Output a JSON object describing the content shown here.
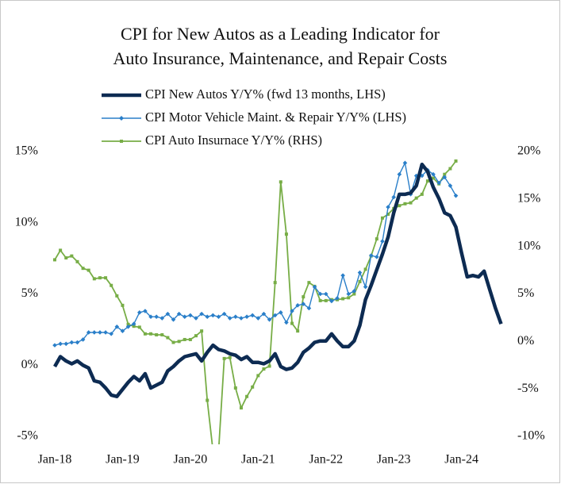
{
  "chart_data": {
    "type": "line",
    "title": [
      "CPI for New Autos as a Leading Indicator for",
      "Auto Insurance, Maintenance, and Repair Costs"
    ],
    "categories": [
      "Jan-18",
      null,
      null,
      null,
      null,
      null,
      null,
      null,
      null,
      null,
      null,
      null,
      "Jan-19",
      null,
      null,
      null,
      null,
      null,
      null,
      null,
      null,
      null,
      null,
      null,
      "Jan-20",
      null,
      null,
      null,
      null,
      null,
      null,
      null,
      null,
      null,
      null,
      null,
      "Jan-21",
      null,
      null,
      null,
      null,
      null,
      null,
      null,
      null,
      null,
      null,
      null,
      "Jan-22",
      null,
      null,
      null,
      null,
      null,
      null,
      null,
      null,
      null,
      null,
      null,
      "Jan-23",
      null,
      null,
      null,
      null,
      null,
      null,
      null,
      null,
      null,
      null,
      null,
      "Jan-24",
      null,
      null,
      null,
      null,
      null,
      null,
      null
    ],
    "series": [
      {
        "name": "CPI New Autos Y/Y% (fwd 13 months, LHS)",
        "color": "#0d2b52",
        "axis": "y",
        "values": [
          -0.1,
          0.6,
          0.3,
          0.1,
          0.3,
          0.0,
          -0.2,
          -1.1,
          -1.2,
          -1.6,
          -2.1,
          -2.2,
          -1.7,
          -1.2,
          -0.8,
          -1.1,
          -0.6,
          -1.6,
          -1.4,
          -1.2,
          -0.4,
          -0.1,
          0.3,
          0.6,
          0.7,
          0.8,
          0.3,
          0.9,
          1.4,
          1.1,
          1.0,
          0.8,
          0.7,
          0.4,
          0.6,
          0.2,
          0.2,
          0.1,
          0.3,
          0.8,
          -0.1,
          -0.3,
          -0.2,
          0.2,
          0.9,
          1.2,
          1.6,
          1.7,
          1.7,
          2.2,
          1.7,
          1.3,
          1.3,
          1.7,
          2.8,
          4.6,
          5.6,
          6.7,
          7.8,
          9.0,
          10.7,
          12.0,
          12.0,
          12.1,
          12.6,
          14.1,
          13.6,
          12.5,
          11.7,
          10.7,
          10.5,
          9.7,
          7.9,
          6.2,
          6.3,
          6.2,
          6.6,
          5.3,
          4.0,
          2.9
        ]
      },
      {
        "name": "CPI Motor Vehicle Maint. & Repair Y/Y% (LHS)",
        "color": "#2a7fc9",
        "axis": "y",
        "values": [
          1.4,
          1.5,
          1.5,
          1.6,
          1.6,
          1.8,
          2.3,
          2.3,
          2.3,
          2.3,
          2.2,
          2.7,
          2.4,
          2.7,
          2.9,
          3.7,
          3.8,
          3.4,
          3.4,
          3.3,
          3.6,
          3.2,
          3.6,
          3.4,
          3.5,
          3.3,
          3.6,
          3.4,
          3.5,
          3.4,
          3.6,
          3.3,
          3.4,
          3.3,
          3.4,
          3.5,
          3.3,
          3.6,
          3.2,
          3.5,
          3.7,
          3.0,
          3.8,
          4.2,
          4.3,
          4.0,
          5.5,
          5.0,
          5.0,
          4.5,
          4.7,
          6.3,
          5.0,
          5.2,
          6.5,
          5.5,
          7.7,
          7.6,
          8.7,
          11.1,
          11.8,
          13.4,
          14.2,
          12.0,
          13.3,
          13.3,
          13.7,
          13.4,
          12.8,
          13.2,
          12.6,
          11.9,
          null,
          null,
          null,
          null,
          null,
          null,
          null,
          null
        ]
      },
      {
        "name": "CPI Auto Insurnace Y/Y% (RHS)",
        "color": "#77ad46",
        "axis": "y2",
        "values": [
          8.6,
          9.6,
          8.8,
          9.0,
          8.4,
          7.7,
          7.5,
          6.6,
          6.7,
          6.7,
          5.9,
          4.8,
          3.8,
          1.8,
          1.6,
          1.5,
          0.8,
          0.8,
          0.7,
          0.7,
          0.4,
          -0.1,
          0.0,
          0.2,
          0.2,
          0.6,
          1.1,
          -6.2,
          -11.5,
          -11.5,
          -1.8,
          -1.7,
          -4.9,
          -7.0,
          -5.8,
          -4.8,
          -3.6,
          -2.9,
          -2.6,
          6.2,
          16.8,
          11.3,
          1.9,
          1.1,
          4.7,
          6.2,
          5.8,
          4.3,
          4.3,
          4.4,
          4.4,
          4.5,
          4.6,
          5.0,
          6.3,
          7.6,
          9.0,
          10.8,
          13.0,
          13.4,
          14.0,
          14.3,
          14.5,
          14.6,
          15.1,
          15.5,
          16.9,
          17.2,
          16.6,
          17.6,
          18.2,
          19.0,
          null,
          null,
          null,
          null,
          null,
          null,
          null,
          null
        ]
      }
    ],
    "ylim": [
      -5,
      15
    ],
    "yticks": [
      {
        "value": -5,
        "label": "-5%"
      },
      {
        "value": 0,
        "label": "0%"
      },
      {
        "value": 5,
        "label": "5%"
      },
      {
        "value": 10,
        "label": "10%"
      },
      {
        "value": 15,
        "label": "15%"
      }
    ],
    "y2lim": [
      -10,
      20
    ],
    "y2ticks": [
      {
        "value": -10,
        "label": "-10%"
      },
      {
        "value": -5,
        "label": "-5%"
      },
      {
        "value": 0,
        "label": "0%"
      },
      {
        "value": 5,
        "label": "5%"
      },
      {
        "value": 10,
        "label": "10%"
      },
      {
        "value": 15,
        "label": "15%"
      },
      {
        "value": 20,
        "label": "20%"
      }
    ],
    "grid": false
  }
}
